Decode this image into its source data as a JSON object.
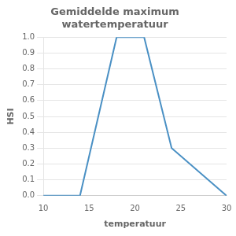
{
  "chart_data": {
    "type": "line",
    "title": "Gemiddelde maximum\nwatertemperatuur",
    "xlabel": "temperatuur",
    "ylabel": "HSI",
    "x": [
      10,
      14,
      18,
      21,
      24,
      30
    ],
    "values": [
      0.0,
      0.0,
      1.0,
      1.0,
      0.3,
      0.0
    ],
    "color": "#4a90c4",
    "xlim": [
      10,
      30
    ],
    "ylim": [
      0.0,
      1.0
    ],
    "xticks": [
      10,
      15,
      20,
      25,
      30
    ],
    "yticks": [
      {
        "value": 0.0,
        "label": "0.0"
      },
      0.1,
      0.2,
      0.3,
      0.4,
      0.5,
      0.6,
      0.7,
      0.8,
      0.9,
      {
        "value": 1.0,
        "label": "1.0"
      }
    ],
    "grid": "y"
  }
}
